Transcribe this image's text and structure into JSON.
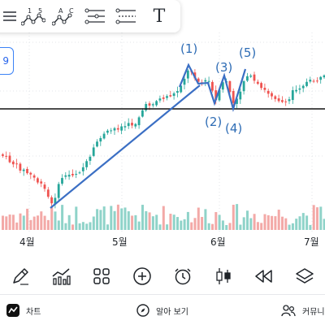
{
  "toolbar": {
    "tools": [
      {
        "name": "menu",
        "icon": "hamburger-icon"
      },
      {
        "name": "wave-12345",
        "icon": "wave-numbers-icon",
        "labels": [
          "1",
          "5"
        ]
      },
      {
        "name": "wave-abc",
        "icon": "wave-letters-icon",
        "labels": [
          "A",
          "C"
        ]
      },
      {
        "name": "fib",
        "icon": "fib-levels-icon"
      },
      {
        "name": "fib-ext",
        "icon": "fib-extension-icon"
      },
      {
        "name": "text",
        "icon": "text-tool-icon",
        "label": "T"
      }
    ]
  },
  "value_tag": "9",
  "chart_data": {
    "type": "candlestick",
    "x_ticks": [
      "4월",
      "5월",
      "6월",
      "7월"
    ],
    "horizontal_line": true,
    "trend_line": true,
    "wave_labels": [
      "(1)",
      "(2)",
      "(3)",
      "(4)",
      "(5)"
    ],
    "colors": {
      "up": "#26a69a",
      "down": "#ef5350",
      "wave": "#3b6fc4",
      "level": "#111111"
    }
  },
  "tools_row": [
    {
      "name": "draw",
      "icon": "pencil-icon"
    },
    {
      "name": "indicators",
      "icon": "indicator-icon"
    },
    {
      "name": "layouts",
      "icon": "grid-icon"
    },
    {
      "name": "add",
      "icon": "plus-circle-icon"
    },
    {
      "name": "alert",
      "icon": "alarm-icon"
    },
    {
      "name": "chart-type",
      "icon": "candles-icon"
    },
    {
      "name": "replay",
      "icon": "rewind-icon"
    },
    {
      "name": "layers",
      "icon": "layers-icon"
    }
  ],
  "nav": {
    "chart_label": "차트",
    "explore_label": "알아 보기",
    "community_label": "커뮤니티"
  }
}
